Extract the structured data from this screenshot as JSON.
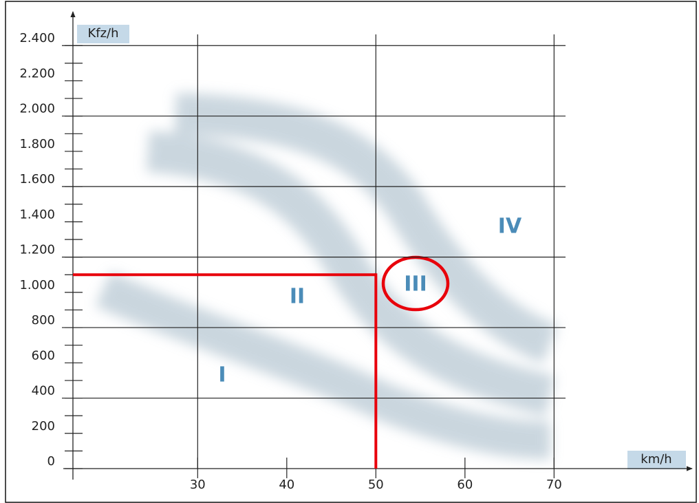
{
  "chart_data": {
    "type": "regions",
    "y_axis_label": "Kfz/h",
    "x_axis_label": "km/h",
    "xlim": [
      16,
      85
    ],
    "ylim": [
      0,
      2600
    ],
    "xticks": [
      30,
      40,
      50,
      60,
      70
    ],
    "xgrid": [
      30,
      50,
      70
    ],
    "yticks": [
      0,
      200,
      400,
      600,
      800,
      {
        "value": 1000,
        "label": "1.000"
      },
      {
        "value": 1200,
        "label": "1.200"
      },
      {
        "value": 1400,
        "label": "1.400"
      },
      {
        "value": 1600,
        "label": "1.600"
      },
      {
        "value": 1800,
        "label": "1.800"
      },
      {
        "value": 2000,
        "label": "2.000"
      },
      {
        "value": 2200,
        "label": "2.200"
      },
      {
        "value": 2400,
        "label": "2.400"
      }
    ],
    "yminor": [
      100,
      300,
      500,
      700,
      900,
      1100,
      1300,
      1500,
      1700,
      1900,
      2100,
      2300
    ],
    "ygrid": [
      400,
      800,
      1200,
      1600,
      2000,
      2400
    ],
    "annotations": [
      "I",
      "II",
      "III",
      "IV"
    ],
    "reference": {
      "x": 50,
      "y": 1100,
      "color": "#e8000b"
    }
  }
}
